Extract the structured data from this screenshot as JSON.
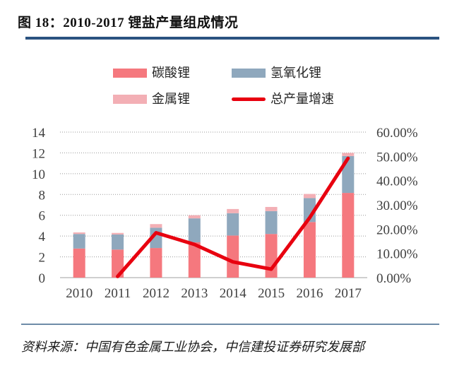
{
  "header": {
    "title": "图 18：2010-2017 锂盐产量组成情况"
  },
  "footer": {
    "source": "资料来源：中国有色金属工业协会，中信建投证券研究发展部"
  },
  "colors": {
    "title_rule": "#2B5380",
    "footer_rule": "#6E8CA8",
    "carbonate": "#F5787E",
    "hydroxide": "#8FA8BD",
    "metal": "#F3AFB5",
    "growth_line": "#E8000F",
    "axis_text": "#404040",
    "gridline": "#999999",
    "baseline": "#BFBFBF"
  },
  "legend": {
    "items": [
      {
        "id": "carbonate",
        "label": "碳酸锂",
        "swatch": "box"
      },
      {
        "id": "hydroxide",
        "label": "氢氧化锂",
        "swatch": "box"
      },
      {
        "id": "metal",
        "label": "金属锂",
        "swatch": "box"
      },
      {
        "id": "growth_line",
        "label": "总产量增速",
        "swatch": "line"
      }
    ]
  },
  "chart_data": {
    "type": "stacked-bar + line (dual axis)",
    "title": "图 18：2010-2017 锂盐产量组成情况",
    "legend_position": "top",
    "grid": "horizontal dotted",
    "categories": [
      "2010",
      "2011",
      "2012",
      "2013",
      "2014",
      "2015",
      "2016",
      "2017"
    ],
    "series": [
      {
        "name": "碳酸锂",
        "type": "bar",
        "axis": "left",
        "color_key": "carbonate",
        "values": [
          2.8,
          2.7,
          2.85,
          3.4,
          4.05,
          4.2,
          5.35,
          8.15
        ]
      },
      {
        "name": "氢氧化锂",
        "type": "bar",
        "axis": "left",
        "color_key": "hydroxide",
        "values": [
          1.4,
          1.45,
          1.95,
          2.3,
          2.15,
          2.2,
          2.3,
          3.55
        ]
      },
      {
        "name": "金属锂",
        "type": "bar",
        "axis": "left",
        "color_key": "metal",
        "values": [
          0.15,
          0.15,
          0.35,
          0.3,
          0.4,
          0.4,
          0.4,
          0.3
        ]
      },
      {
        "name": "总产量增速",
        "type": "line",
        "axis": "right",
        "color_key": "growth_line",
        "values": [
          null,
          0.5,
          18.5,
          13.7,
          6.5,
          3.5,
          24.7,
          49.2
        ]
      }
    ],
    "stacked_totals": [
      4.35,
      4.3,
      5.15,
      6.0,
      6.6,
      6.8,
      8.05,
      12.0
    ],
    "left_axis": {
      "min": 0,
      "max": 14,
      "step": 2,
      "tick_values": [
        0,
        2,
        4,
        6,
        8,
        10,
        12,
        14
      ],
      "ticks": [
        "0",
        "2",
        "4",
        "6",
        "8",
        "10",
        "12",
        "14"
      ]
    },
    "right_axis": {
      "min": 0,
      "max": 60,
      "step": 10,
      "tick_values": [
        0,
        10,
        20,
        30,
        40,
        50,
        60
      ],
      "ticks": [
        "0.00%",
        "10.00%",
        "20.00%",
        "30.00%",
        "40.00%",
        "50.00%",
        "60.00%"
      ]
    },
    "xlabel": "",
    "ylabel": ""
  }
}
